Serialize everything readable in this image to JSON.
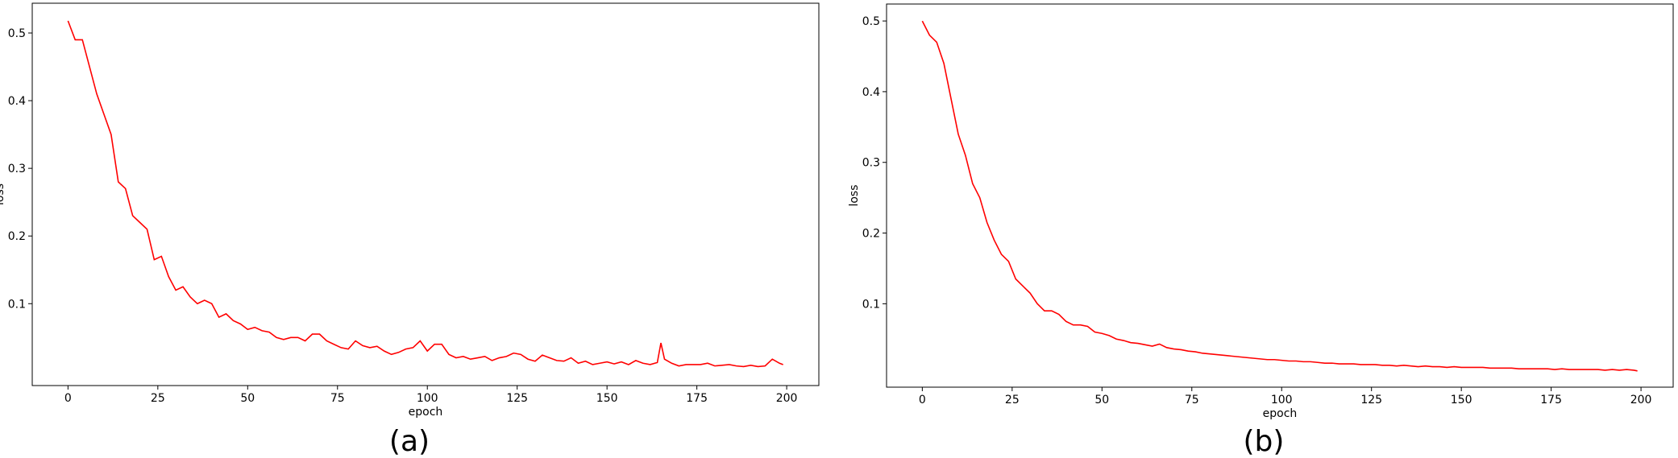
{
  "chart_data": [
    {
      "type": "line",
      "caption": "(a)",
      "x_label": "epoch",
      "y_label": "loss",
      "xlim": [
        -9.95,
        208.95
      ],
      "ylim": [
        -0.021,
        0.544
      ],
      "xticks": [
        0,
        25,
        50,
        75,
        100,
        125,
        150,
        175,
        200
      ],
      "yticks": [
        0.1,
        0.2,
        0.3,
        0.4,
        0.5
      ],
      "series": [
        {
          "color": "#ff0000",
          "x": [
            0,
            2,
            4,
            6,
            8,
            10,
            12,
            14,
            16,
            18,
            20,
            22,
            24,
            26,
            28,
            30,
            32,
            34,
            36,
            38,
            40,
            42,
            44,
            46,
            48,
            50,
            52,
            54,
            56,
            58,
            60,
            62,
            64,
            66,
            68,
            70,
            72,
            74,
            76,
            78,
            80,
            82,
            84,
            86,
            88,
            90,
            92,
            94,
            96,
            98,
            100,
            102,
            104,
            106,
            108,
            110,
            112,
            114,
            116,
            118,
            120,
            122,
            124,
            126,
            128,
            130,
            132,
            134,
            136,
            138,
            140,
            142,
            144,
            146,
            148,
            150,
            152,
            154,
            156,
            158,
            160,
            162,
            164,
            165,
            166,
            168,
            170,
            172,
            174,
            176,
            178,
            180,
            182,
            184,
            186,
            188,
            190,
            192,
            194,
            196,
            198,
            199
          ],
          "values": [
            0.518,
            0.49,
            0.49,
            0.45,
            0.41,
            0.38,
            0.35,
            0.28,
            0.27,
            0.23,
            0.22,
            0.21,
            0.165,
            0.17,
            0.14,
            0.12,
            0.125,
            0.11,
            0.1,
            0.105,
            0.1,
            0.08,
            0.085,
            0.075,
            0.07,
            0.062,
            0.065,
            0.06,
            0.058,
            0.05,
            0.047,
            0.05,
            0.05,
            0.045,
            0.055,
            0.055,
            0.045,
            0.04,
            0.035,
            0.033,
            0.045,
            0.038,
            0.035,
            0.037,
            0.03,
            0.025,
            0.028,
            0.033,
            0.035,
            0.045,
            0.03,
            0.04,
            0.04,
            0.025,
            0.02,
            0.022,
            0.018,
            0.02,
            0.022,
            0.016,
            0.02,
            0.022,
            0.027,
            0.025,
            0.018,
            0.015,
            0.024,
            0.02,
            0.016,
            0.015,
            0.02,
            0.012,
            0.015,
            0.01,
            0.012,
            0.014,
            0.011,
            0.014,
            0.01,
            0.016,
            0.012,
            0.01,
            0.013,
            0.042,
            0.018,
            0.012,
            0.008,
            0.01,
            0.01,
            0.01,
            0.012,
            0.008,
            0.009,
            0.01,
            0.008,
            0.007,
            0.009,
            0.007,
            0.008,
            0.018,
            0.012,
            0.01
          ]
        }
      ]
    },
    {
      "type": "line",
      "caption": "(b)",
      "x_label": "epoch",
      "y_label": "loss",
      "xlim": [
        -9.95,
        208.95
      ],
      "ylim": [
        -0.018,
        0.524
      ],
      "xticks": [
        0,
        25,
        50,
        75,
        100,
        125,
        150,
        175,
        200
      ],
      "yticks": [
        0.1,
        0.2,
        0.3,
        0.4,
        0.5
      ],
      "series": [
        {
          "color": "#ff0000",
          "x": [
            0,
            2,
            4,
            6,
            8,
            10,
            12,
            14,
            16,
            18,
            20,
            22,
            24,
            26,
            28,
            30,
            32,
            34,
            36,
            38,
            40,
            42,
            44,
            46,
            48,
            50,
            52,
            54,
            56,
            58,
            60,
            62,
            64,
            66,
            68,
            70,
            72,
            74,
            76,
            78,
            80,
            82,
            84,
            86,
            88,
            90,
            92,
            94,
            96,
            98,
            100,
            102,
            104,
            106,
            108,
            110,
            112,
            114,
            116,
            118,
            120,
            122,
            124,
            126,
            128,
            130,
            132,
            134,
            136,
            138,
            140,
            142,
            144,
            146,
            148,
            150,
            152,
            154,
            156,
            158,
            160,
            162,
            164,
            166,
            168,
            170,
            172,
            174,
            176,
            178,
            180,
            182,
            184,
            186,
            188,
            190,
            192,
            194,
            196,
            198,
            199
          ],
          "values": [
            0.5,
            0.48,
            0.47,
            0.44,
            0.39,
            0.34,
            0.31,
            0.27,
            0.25,
            0.215,
            0.19,
            0.17,
            0.16,
            0.135,
            0.125,
            0.115,
            0.1,
            0.09,
            0.09,
            0.085,
            0.075,
            0.07,
            0.07,
            0.068,
            0.06,
            0.058,
            0.055,
            0.05,
            0.048,
            0.045,
            0.044,
            0.042,
            0.04,
            0.043,
            0.038,
            0.036,
            0.035,
            0.033,
            0.032,
            0.03,
            0.029,
            0.028,
            0.027,
            0.026,
            0.025,
            0.024,
            0.023,
            0.022,
            0.021,
            0.021,
            0.02,
            0.019,
            0.019,
            0.018,
            0.018,
            0.017,
            0.016,
            0.016,
            0.015,
            0.015,
            0.015,
            0.014,
            0.014,
            0.014,
            0.013,
            0.013,
            0.012,
            0.013,
            0.012,
            0.011,
            0.012,
            0.011,
            0.011,
            0.01,
            0.011,
            0.01,
            0.01,
            0.01,
            0.01,
            0.009,
            0.009,
            0.009,
            0.009,
            0.008,
            0.008,
            0.008,
            0.008,
            0.008,
            0.007,
            0.008,
            0.007,
            0.007,
            0.007,
            0.007,
            0.007,
            0.006,
            0.007,
            0.006,
            0.007,
            0.006,
            0.005
          ]
        }
      ]
    }
  ]
}
